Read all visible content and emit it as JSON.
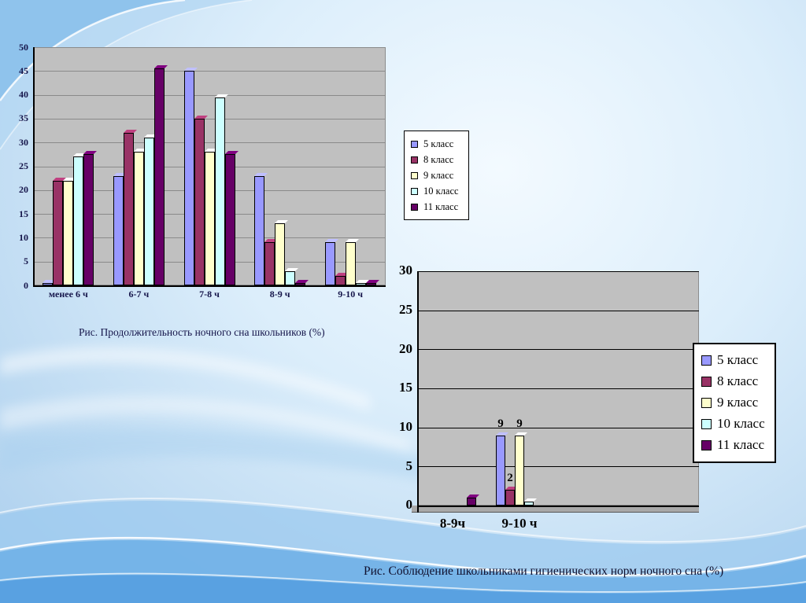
{
  "chart_data": [
    {
      "id": "chart1",
      "type": "bar",
      "caption": "Рис. Продолжительность ночного сна школьников (%)",
      "categories": [
        "менее 6 ч",
        "6-7 ч",
        "7-8 ч",
        "8-9 ч",
        "9-10 ч"
      ],
      "ylim": [
        0,
        50
      ],
      "ystep": 5,
      "grid": true,
      "legend_position": "right",
      "series": [
        {
          "name": "5 класс",
          "color": "#9999FF",
          "values": [
            0.5,
            23,
            45,
            23,
            9
          ]
        },
        {
          "name": "8 класс",
          "color": "#993366",
          "values": [
            22,
            32,
            35,
            9,
            2
          ]
        },
        {
          "name": "9 класс",
          "color": "#FFFFCC",
          "values": [
            22,
            28,
            28,
            13,
            9
          ]
        },
        {
          "name": "10 класс",
          "color": "#CCFFFF",
          "values": [
            27,
            31,
            39.5,
            3,
            0.5
          ]
        },
        {
          "name": "11 класс",
          "color": "#660066",
          "values": [
            27.5,
            45.5,
            27.5,
            0.5,
            0.5
          ]
        }
      ]
    },
    {
      "id": "chart2",
      "type": "bar",
      "caption": "Рис. Соблюдение школьниками гигиенических норм ночного сна (%)",
      "categories": [
        "8-9ч",
        "9-10 ч"
      ],
      "ylim": [
        0,
        30
      ],
      "ystep": 5,
      "grid": true,
      "legend_position": "right",
      "series": [
        {
          "name": "5 класс",
          "color": "#9999FF",
          "values": [
            0,
            9
          ],
          "labels": [
            "",
            "9"
          ]
        },
        {
          "name": "8 класс",
          "color": "#993366",
          "values": [
            0,
            2
          ],
          "labels": [
            "",
            "2"
          ]
        },
        {
          "name": "9 класс",
          "color": "#FFFFCC",
          "values": [
            0,
            9
          ],
          "labels": [
            "",
            "9"
          ]
        },
        {
          "name": "10 класс",
          "color": "#CCFFFF",
          "values": [
            0,
            0.5
          ],
          "labels": [
            "",
            ""
          ]
        },
        {
          "name": "11 класс",
          "color": "#660066",
          "values": [
            1,
            0
          ],
          "labels": [
            "",
            ""
          ]
        }
      ]
    }
  ]
}
